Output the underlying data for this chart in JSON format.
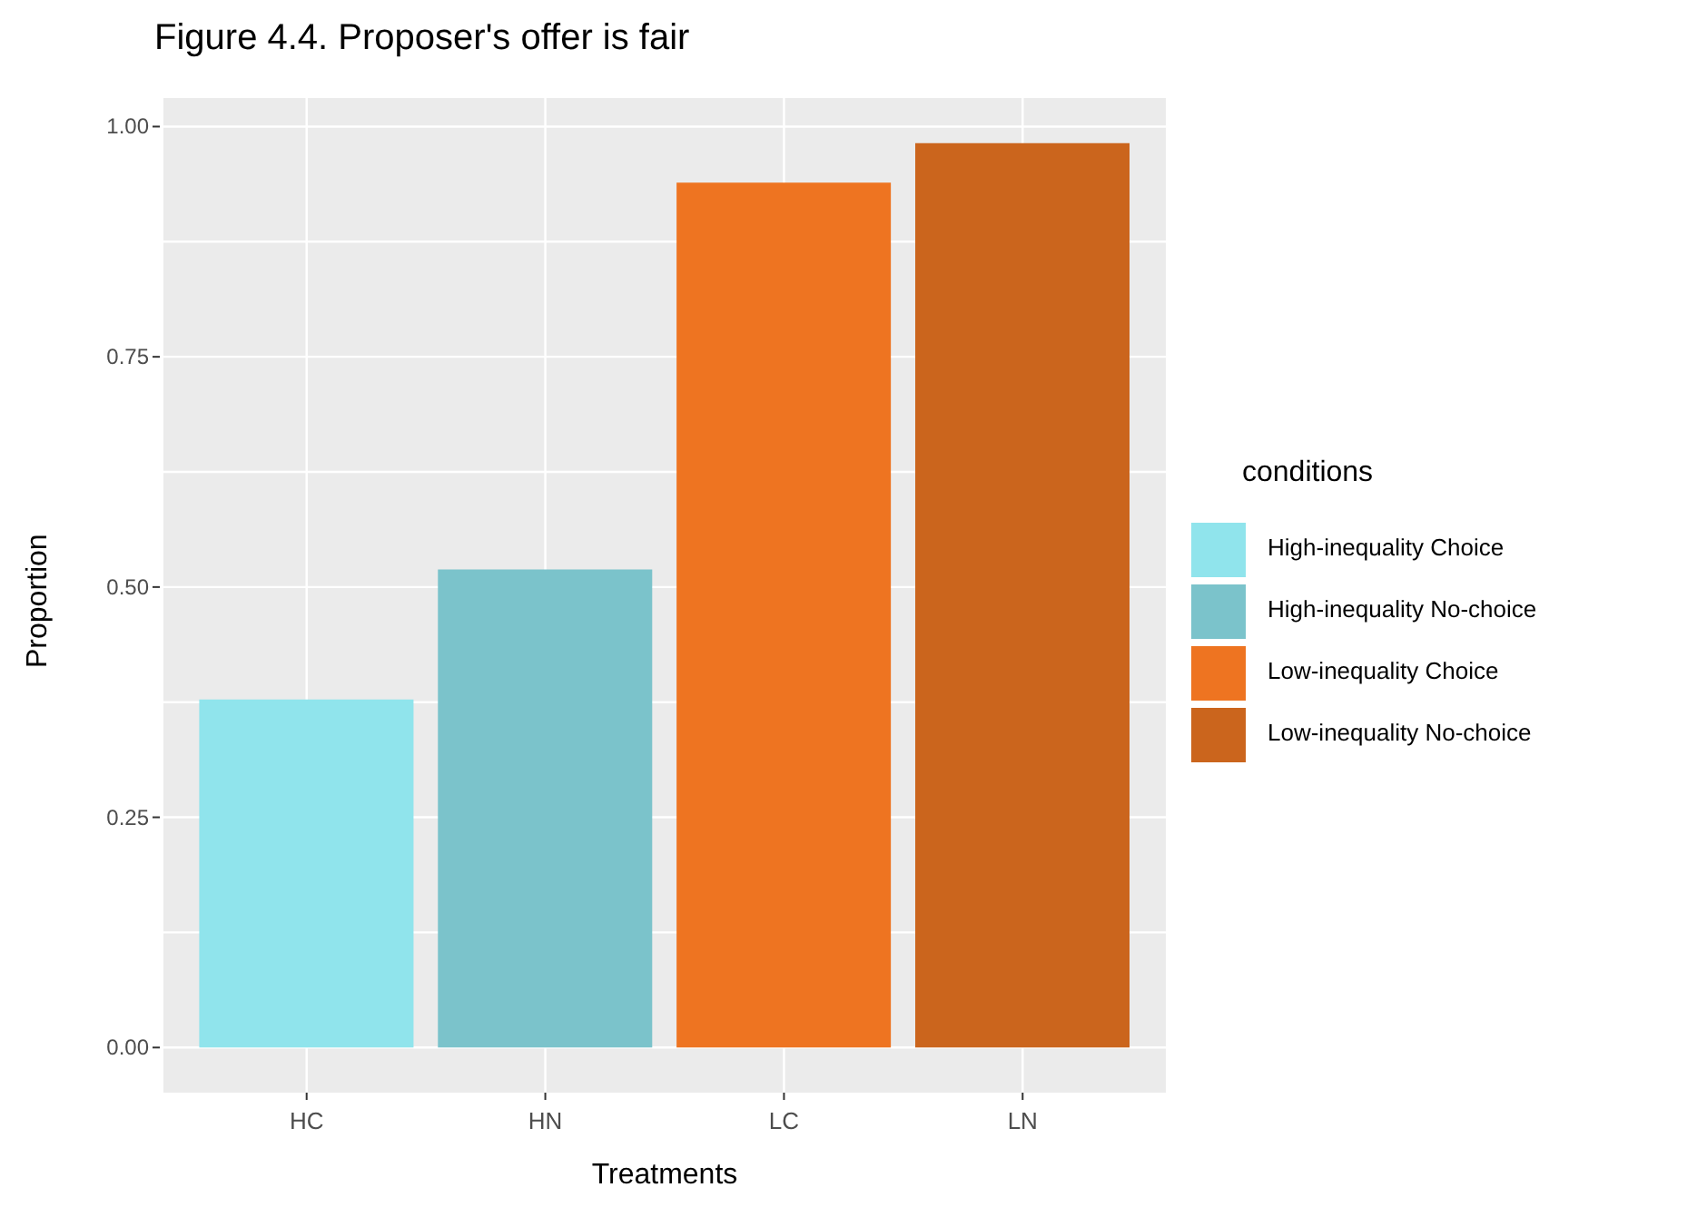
{
  "chart_data": {
    "type": "bar",
    "title": "Figure 4.4. Proposer's offer is fair",
    "xlabel": "Treatments",
    "ylabel": "Proportion",
    "legend_title": "conditions",
    "categories": [
      "HC",
      "HN",
      "LC",
      "LN"
    ],
    "series": [
      {
        "name": "High-inequality Choice",
        "color": "#90e4ec",
        "values": [
          0.378,
          null,
          null,
          null
        ]
      },
      {
        "name": "High-inequality No-choice",
        "color": "#7bc3cb",
        "values": [
          null,
          0.519,
          null,
          null
        ]
      },
      {
        "name": "Low-inequality Choice",
        "color": "#ee7421",
        "values": [
          null,
          null,
          0.939,
          null
        ]
      },
      {
        "name": "Low-inequality No-choice",
        "color": "#cb651d",
        "values": [
          null,
          null,
          null,
          0.982
        ]
      }
    ],
    "stacked": true,
    "ylim": [
      -0.049,
      1.031
    ],
    "yticks": [
      {
        "value": 0,
        "label": "0.00"
      },
      {
        "value": 0.125,
        "label": null
      },
      {
        "value": 0.25,
        "label": "0.25"
      },
      {
        "value": 0.375,
        "label": null
      },
      {
        "value": 0.5,
        "label": "0.50"
      },
      {
        "value": 0.625,
        "label": null
      },
      {
        "value": 0.75,
        "label": "0.75"
      },
      {
        "value": 0.875,
        "label": null
      },
      {
        "value": 1,
        "label": "1.00"
      }
    ],
    "grid": true,
    "legend": "right"
  }
}
